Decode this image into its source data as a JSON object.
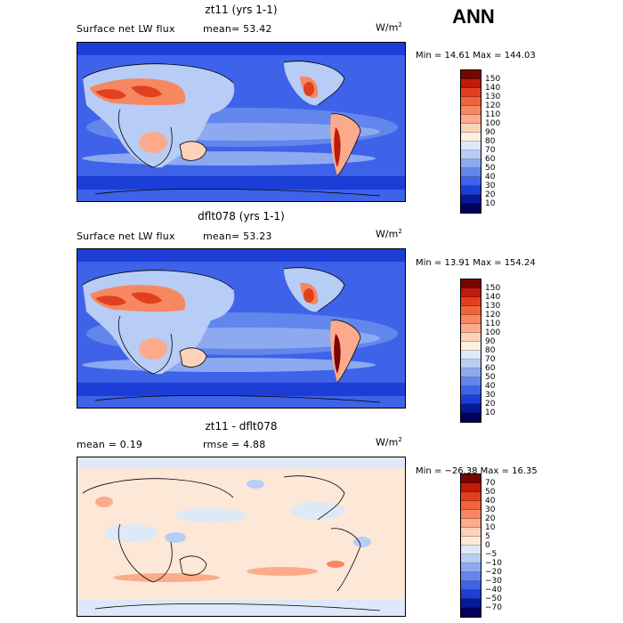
{
  "season": "ANN",
  "panels": [
    {
      "title": "zt11 (yrs 1-1)",
      "variable": "Surface net LW flux",
      "stat": "mean=  53.42",
      "units_base": "W/m",
      "units_exp": "2",
      "minmax": "Min =  14.61 Max = 144.03",
      "levels": [
        "150",
        "140",
        "130",
        "120",
        "110",
        "100",
        "90",
        "80",
        "70",
        "60",
        "50",
        "40",
        "30",
        "20",
        "10"
      ],
      "colors": [
        "#7a0400",
        "#c01a0a",
        "#e1401f",
        "#f0643c",
        "#f78761",
        "#fbab8b",
        "#fcd2bb",
        "#fdf0e2",
        "#dde8f9",
        "#b7cdf6",
        "#8daaf1",
        "#6286ec",
        "#3e62e8",
        "#1c3ed6",
        "#061a98",
        "#02005c"
      ]
    },
    {
      "title": "dflt078 (yrs 1-1)",
      "variable": "Surface net LW flux",
      "stat": "mean=  53.23",
      "units_base": "W/m",
      "units_exp": "2",
      "minmax": "Min =  13.91 Max = 154.24",
      "levels": [
        "150",
        "140",
        "130",
        "120",
        "110",
        "100",
        "90",
        "80",
        "70",
        "60",
        "50",
        "40",
        "30",
        "20",
        "10"
      ],
      "colors": [
        "#7a0400",
        "#c01a0a",
        "#e1401f",
        "#f0643c",
        "#f78761",
        "#fbab8b",
        "#fcd2bb",
        "#fdf0e2",
        "#dde8f9",
        "#b7cdf6",
        "#8daaf1",
        "#6286ec",
        "#3e62e8",
        "#1c3ed6",
        "#061a98",
        "#02005c"
      ]
    },
    {
      "title": "zt11 - dflt078",
      "stat_mean": "mean =    0.19",
      "stat_rmse": "rmse =    4.88",
      "units_base": "W/m",
      "units_exp": "2",
      "minmax": "Min = −26.38 Max =  16.35",
      "levels": [
        "70",
        "50",
        "40",
        "30",
        "20",
        "10",
        "5",
        "0",
        "−5",
        "−10",
        "−20",
        "−30",
        "−40",
        "−50",
        "−70"
      ],
      "colors": [
        "#7a0400",
        "#c01a0a",
        "#e1401f",
        "#f0643c",
        "#f78761",
        "#fbab8b",
        "#fcd2bb",
        "#fde7d6",
        "#dde8f9",
        "#b7cdf6",
        "#8daaf1",
        "#6286ec",
        "#3e62e8",
        "#1c3ed6",
        "#061a98",
        "#02005c"
      ]
    }
  ]
}
